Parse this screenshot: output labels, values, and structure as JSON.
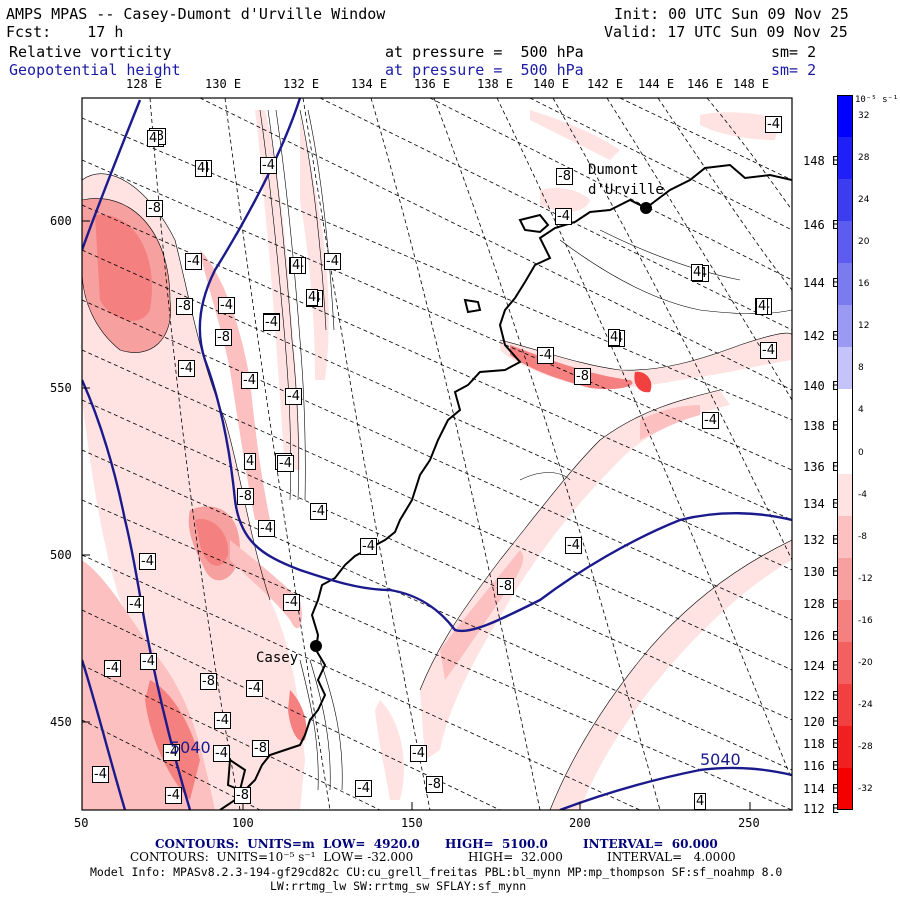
{
  "header": {
    "title": "AMPS MPAS -- Casey-Dumont d'Urville Window",
    "init": "Init: 00 UTC Sun 09 Nov 25",
    "fcst": "Fcst:    17 h",
    "valid": "Valid: 17 UTC Sun 09 Nov 25",
    "field1_name": "Relative vorticity",
    "field1_level": "at pressure =  500 hPa",
    "field1_sm": "sm= 2",
    "field2_name": "Geopotential height",
    "field2_level": "at pressure =  500 hPa",
    "field2_sm": "sm= 2"
  },
  "axes": {
    "top_lon": [
      "128 E",
      "130 E",
      "132 E",
      "134 E",
      "136 E",
      "138 E",
      "140 E",
      "142 E",
      "144 E",
      "146 E",
      "148 E"
    ],
    "right_lon": [
      "148 E",
      "146 E",
      "144 E",
      "142 E",
      "140 E",
      "138 E",
      "136 E",
      "134 E",
      "132 E",
      "130 E",
      "128 E",
      "126 E",
      "124 E",
      "122 E",
      "120 E",
      "118 E",
      "116 E",
      "114 E",
      "112 E"
    ],
    "left_y": [
      "600",
      "550",
      "500",
      "450"
    ],
    "bottom_x": [
      "50",
      "100",
      "150",
      "200",
      "250"
    ]
  },
  "colorbar": {
    "unit": "10⁻⁵ s⁻¹",
    "labels": [
      "32",
      "28",
      "24",
      "20",
      "16",
      "12",
      "8",
      "4",
      "0",
      "-4",
      "-8",
      "-12",
      "-16",
      "-20",
      "-24",
      "-28",
      "-32"
    ],
    "colors": [
      "#0000ff",
      "#1f1ff8",
      "#3d3df0",
      "#5c5cf0",
      "#7b7bf0",
      "#9a9af5",
      "#c4c4fa",
      "#ffffff",
      "#ffffff",
      "#ffe3e3",
      "#fcc0c0",
      "#f7a0a0",
      "#f58080",
      "#f26060",
      "#f24040",
      "#f02020",
      "#f50000"
    ]
  },
  "map": {
    "stations": [
      {
        "name": "Dumont\nd'Urville"
      },
      {
        "name": "Casey"
      }
    ],
    "vort_labels": [
      "-4",
      "-4",
      "-4",
      "-8",
      "-4",
      "-4",
      "-4",
      "-8",
      "-4",
      "-4",
      "-4",
      "-8",
      "-4",
      "-4",
      "-4",
      "-8",
      "-4",
      "-4",
      "-4",
      "-4",
      "-4",
      "-4",
      "-8",
      "-4",
      "-4",
      "-8",
      "-4",
      "-4",
      "-4",
      "-8",
      "-4",
      "-4",
      "-4",
      "-8",
      "-4",
      "-4",
      "-8",
      "-4",
      "-8",
      "-4",
      "-4",
      "-4",
      "-4",
      "-8",
      "-4",
      "-4",
      "-4",
      "-4",
      "-8",
      "-4",
      "-4",
      "-4",
      "4",
      "4",
      "4",
      "4",
      "4",
      "4",
      "4",
      "4",
      "4"
    ],
    "height_labels": [
      "5040",
      "5040"
    ]
  },
  "footer": {
    "line1_a": "CONTOURS:  UNITS=m  LOW=  4920.0",
    "line1_b": "HIGH=  5100.0",
    "line1_c": "INTERVAL=  60.000",
    "line2_a": "CONTOURS:  UNITS=10⁻⁵ s⁻¹  LOW= -32.000",
    "line2_b": "HIGH=  32.000",
    "line2_c": "INTERVAL=   4.0000",
    "model1": "Model Info: MPASv8.2.3-194-gf29cd82c CU:cu_grell_freitas PBL:bl_mynn MP:mp_thompson SF:sf_noahmp 8.0",
    "model2": "LW:rrtmg_lw SW:rrtmg_sw SFLAY:sf_mynn"
  }
}
